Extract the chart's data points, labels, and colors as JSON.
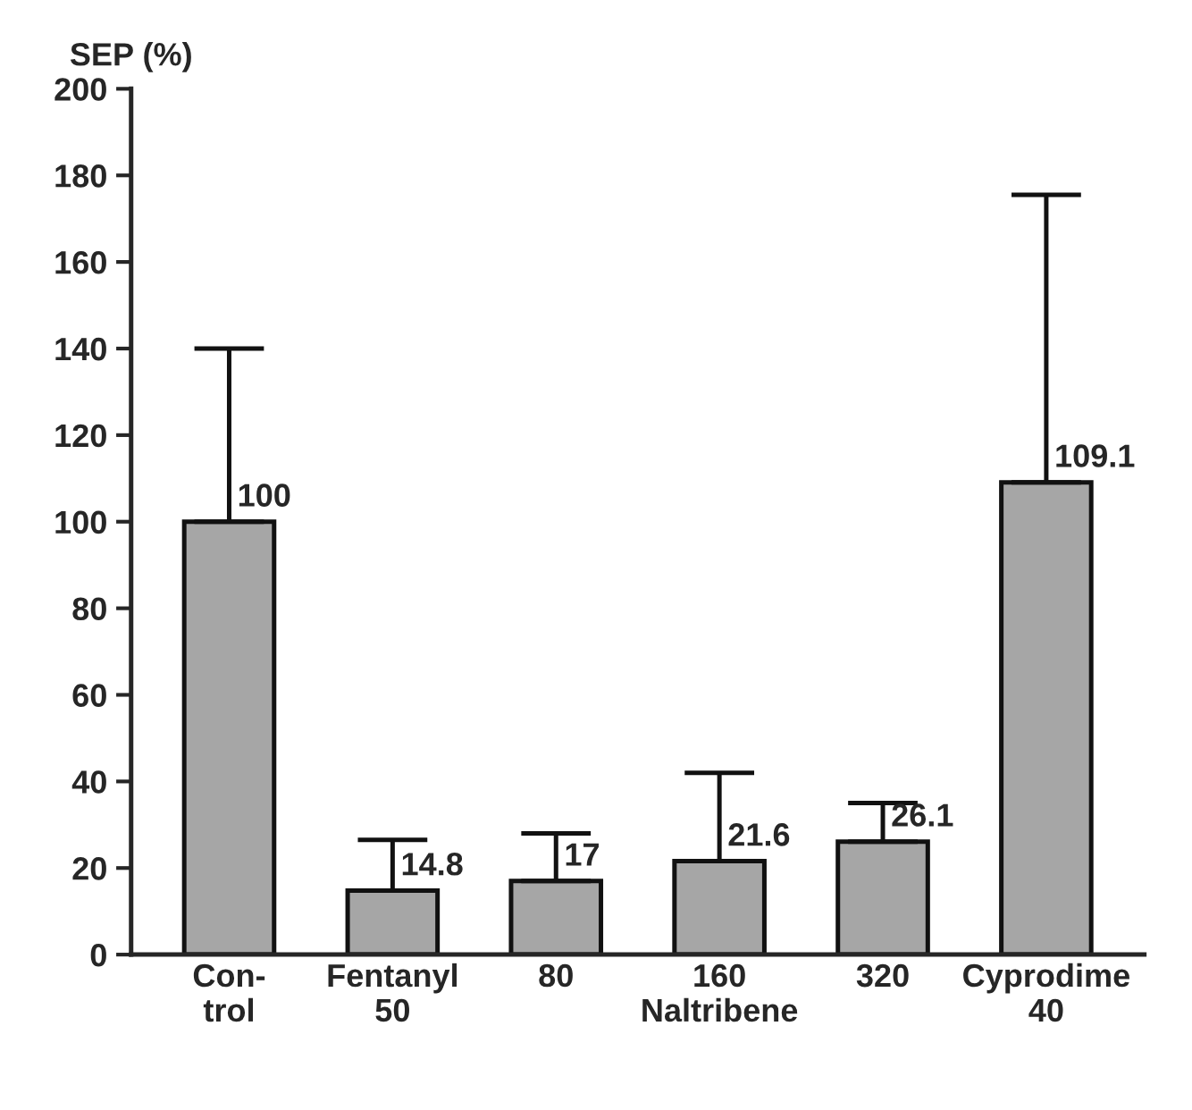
{
  "chart_data": {
    "type": "bar",
    "ylabel": "SEP (%)",
    "categories": [
      "Con-\ntrol",
      "Fentanyl\n50",
      "80",
      "160\nNaltribene",
      "320",
      "Cyprodime\n40"
    ],
    "values": [
      100,
      14.8,
      17,
      21.6,
      26.1,
      109.1
    ],
    "errors": [
      [
        100,
        140
      ],
      [
        14.8,
        26.5
      ],
      [
        17,
        28
      ],
      [
        21.6,
        42
      ],
      [
        26.1,
        35
      ],
      [
        109.1,
        175.5
      ]
    ],
    "color": "#a6a6a6",
    "data_labels": true,
    "ylim": [
      0,
      200
    ],
    "yticks": [
      0,
      20,
      40,
      60,
      80,
      100,
      120,
      140,
      160,
      180,
      200
    ],
    "grid": false,
    "legend": false
  }
}
